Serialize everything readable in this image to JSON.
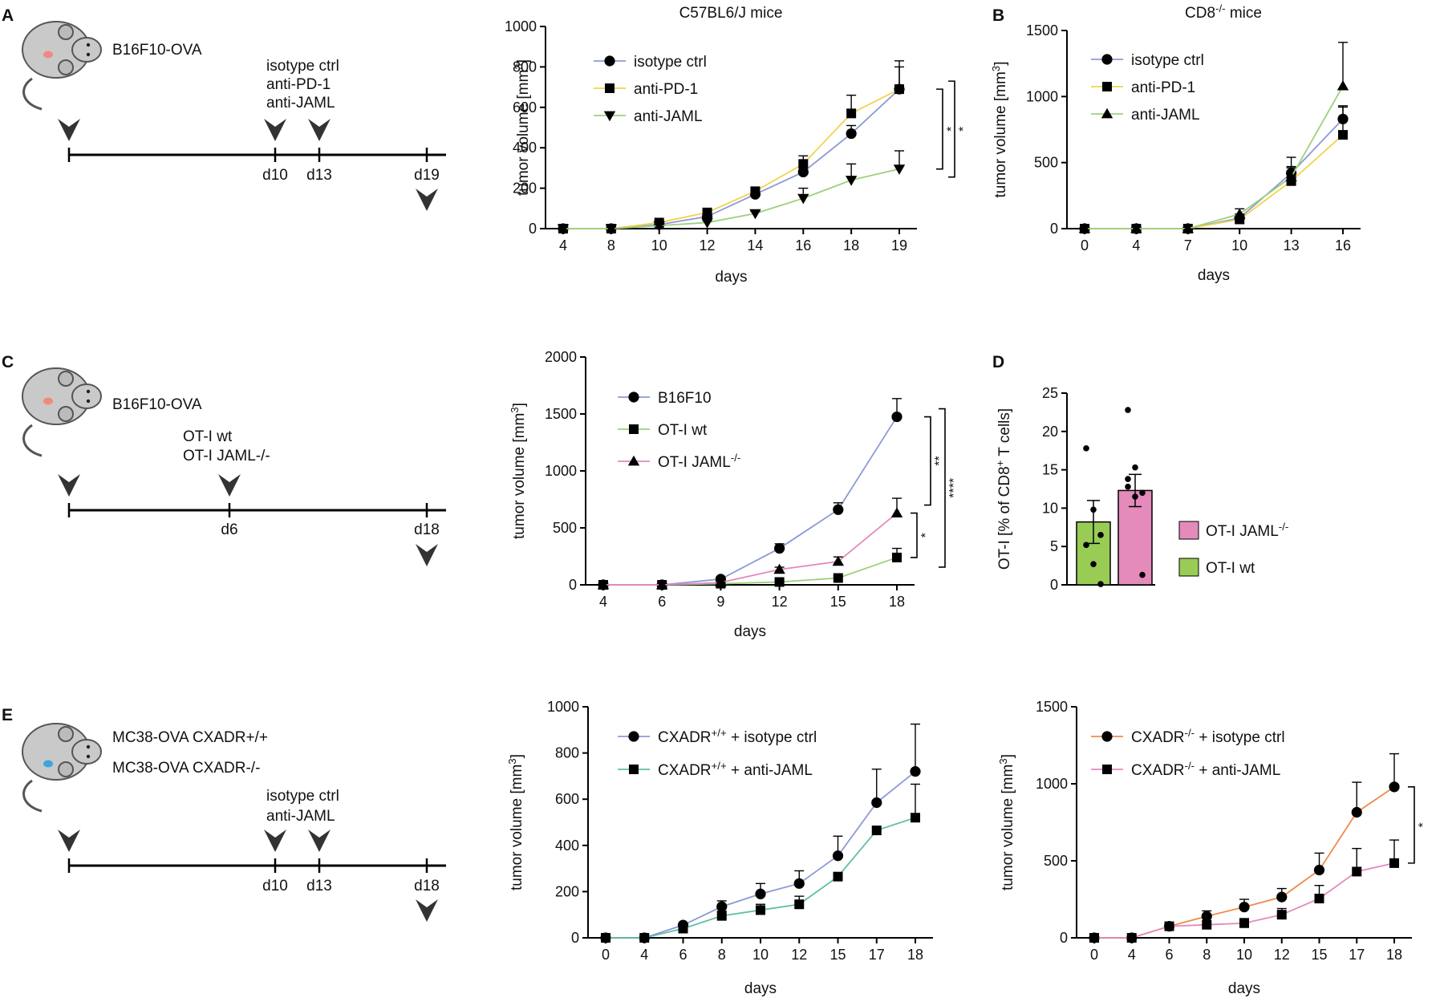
{
  "figure": {
    "panel_letters": [
      "A",
      "B",
      "C",
      "D",
      "E"
    ]
  },
  "schematics": [
    {
      "panel": "A",
      "mouse_labels": [
        "B16F10-OVA"
      ],
      "tumor_color": "#f08a7e",
      "treatment_labels": [
        "isotype ctrl",
        "anti-PD-1",
        "anti-JAML"
      ],
      "ticks": [
        "d10",
        "d13",
        "d19"
      ]
    },
    {
      "panel": "C",
      "mouse_labels": [
        "B16F10-OVA"
      ],
      "tumor_color": "#f08a7e",
      "treatment_labels": [
        "OT-I wt",
        "OT-I JAML-/-"
      ],
      "ticks": [
        "d6",
        "d18"
      ]
    },
    {
      "panel": "E",
      "mouse_labels": [
        "MC38-OVA CXADR+/+",
        "MC38-OVA CXADR-/-"
      ],
      "tumor_color": "#3aa6dd",
      "treatment_labels": [
        "isotype ctrl",
        "anti-JAML"
      ],
      "ticks": [
        "d10",
        "d13",
        "d18"
      ]
    }
  ],
  "chart_data": [
    {
      "id": "A",
      "type": "line",
      "title": "C57BL6/J mice",
      "xlabel": "days",
      "ylabel": "tumor volume [mm3]",
      "categories": [
        "4",
        "8",
        "10",
        "12",
        "14",
        "16",
        "18",
        "19"
      ],
      "ylim": [
        0,
        1000
      ],
      "yticks": [
        0,
        200,
        400,
        600,
        800,
        1000
      ],
      "series": [
        {
          "name": "isotype ctrl",
          "color": "#8c9ad4",
          "marker": "circle",
          "values": [
            0,
            0,
            20,
            60,
            170,
            280,
            470,
            690
          ],
          "errors": [
            0,
            0,
            5,
            10,
            25,
            30,
            40,
            140
          ]
        },
        {
          "name": "anti-PD-1",
          "color": "#f2d34b",
          "marker": "square",
          "values": [
            0,
            0,
            30,
            80,
            185,
            320,
            570,
            690
          ],
          "errors": [
            0,
            0,
            8,
            10,
            20,
            40,
            90,
            110
          ]
        },
        {
          "name": "anti-JAML",
          "color": "#9dd07d",
          "marker": "triangle-down",
          "values": [
            0,
            0,
            15,
            30,
            75,
            150,
            240,
            295
          ],
          "errors": [
            0,
            0,
            5,
            8,
            10,
            50,
            80,
            90
          ]
        }
      ],
      "significance": [
        "*",
        "*"
      ]
    },
    {
      "id": "B",
      "type": "line",
      "title": "CD8-/- mice",
      "xlabel": "days",
      "ylabel": "tumor volume [mm3]",
      "categories": [
        "0",
        "4",
        "7",
        "10",
        "13",
        "16"
      ],
      "ylim": [
        0,
        1500
      ],
      "yticks": [
        0,
        500,
        1000,
        1500
      ],
      "series": [
        {
          "name": "isotype ctrl",
          "color": "#8c9ad4",
          "marker": "circle",
          "values": [
            0,
            0,
            0,
            80,
            420,
            830
          ],
          "errors": [
            0,
            0,
            0,
            30,
            120,
            100
          ]
        },
        {
          "name": "anti-PD-1",
          "color": "#f2d34b",
          "marker": "square",
          "values": [
            0,
            0,
            0,
            70,
            360,
            710
          ],
          "errors": [
            0,
            0,
            0,
            25,
            100,
            210
          ]
        },
        {
          "name": "anti-JAML",
          "color": "#9dd07d",
          "marker": "triangle-up",
          "values": [
            0,
            0,
            0,
            110,
            390,
            1080
          ],
          "errors": [
            0,
            0,
            0,
            40,
            80,
            330
          ]
        }
      ]
    },
    {
      "id": "C",
      "type": "line",
      "title": "",
      "xlabel": "days",
      "ylabel": "tumor volume [mm3]",
      "categories": [
        "4",
        "6",
        "9",
        "12",
        "15",
        "18"
      ],
      "ylim": [
        0,
        2000
      ],
      "yticks": [
        0,
        500,
        1000,
        1500,
        2000
      ],
      "series": [
        {
          "name": "B16F10",
          "color": "#8c9ad4",
          "marker": "circle",
          "values": [
            0,
            0,
            50,
            320,
            660,
            1475
          ],
          "errors": [
            0,
            0,
            10,
            40,
            60,
            160
          ]
        },
        {
          "name": "OT-I wt",
          "color": "#9dd07d",
          "marker": "square",
          "values": [
            0,
            0,
            10,
            25,
            60,
            240
          ],
          "errors": [
            0,
            0,
            5,
            10,
            15,
            80
          ]
        },
        {
          "name": "OT-I JAML-/-",
          "color": "#e489be",
          "marker": "triangle-up",
          "values": [
            0,
            0,
            20,
            135,
            205,
            630
          ],
          "errors": [
            0,
            0,
            5,
            20,
            40,
            130
          ]
        }
      ],
      "significance": [
        "*",
        "**",
        "****"
      ]
    },
    {
      "id": "D",
      "type": "bar",
      "title": "",
      "xlabel": "",
      "ylabel": "OT-I [% of CD8+ T cells]",
      "categories": [
        "OT-I wt",
        "OT-I JAML-/-"
      ],
      "ylim": [
        0,
        25
      ],
      "yticks": [
        0,
        5,
        10,
        15,
        20,
        25
      ],
      "series": [
        {
          "name": "OT-I wt",
          "color": "#99cc55",
          "value": 8.2,
          "error": 2.8,
          "points": [
            17.8,
            9.8,
            6.5,
            5.2,
            2.7,
            0.1
          ]
        },
        {
          "name": "OT-I JAML-/-",
          "color": "#e48bbb",
          "value": 12.3,
          "error": 2.1,
          "points": [
            22.8,
            15.3,
            12.0,
            12.8,
            11.5,
            1.3,
            13.8
          ]
        }
      ],
      "legend": [
        "OT-I JAML-/-",
        "OT-I wt"
      ]
    },
    {
      "id": "E1",
      "type": "line",
      "title": "",
      "xlabel": "days",
      "ylabel": "tumor volume [mm3]",
      "categories": [
        "0",
        "4",
        "6",
        "8",
        "10",
        "12",
        "15",
        "17",
        "18"
      ],
      "ylim": [
        0,
        1000
      ],
      "yticks": [
        0,
        200,
        400,
        600,
        800,
        1000
      ],
      "series": [
        {
          "name": "CXADR+/+ + isotype ctrl",
          "color": "#8c9ad4",
          "marker": "circle",
          "values": [
            0,
            0,
            55,
            135,
            190,
            235,
            355,
            585,
            720
          ],
          "errors": [
            0,
            0,
            8,
            25,
            45,
            55,
            85,
            145,
            205
          ]
        },
        {
          "name": "CXADR+/+ + anti-JAML",
          "color": "#5fbfa8",
          "marker": "square",
          "values": [
            0,
            0,
            40,
            95,
            120,
            145,
            265,
            465,
            520
          ],
          "errors": [
            0,
            0,
            6,
            20,
            25,
            35,
            0,
            0,
            145
          ]
        }
      ]
    },
    {
      "id": "E2",
      "type": "line",
      "title": "",
      "xlabel": "days",
      "ylabel": "tumor volume [mm3]",
      "categories": [
        "0",
        "4",
        "6",
        "8",
        "10",
        "12",
        "15",
        "17",
        "18"
      ],
      "ylim": [
        0,
        1500
      ],
      "yticks": [
        0,
        500,
        1000,
        1500
      ],
      "series": [
        {
          "name": "CXADR-/- + isotype ctrl",
          "color": "#ee8a4b",
          "marker": "circle",
          "values": [
            0,
            0,
            75,
            140,
            200,
            265,
            440,
            815,
            980
          ],
          "errors": [
            0,
            0,
            10,
            35,
            50,
            55,
            110,
            195,
            215
          ]
        },
        {
          "name": "CXADR-/- + anti-JAML",
          "color": "#e489be",
          "marker": "square",
          "values": [
            0,
            0,
            75,
            85,
            95,
            150,
            255,
            430,
            485
          ],
          "errors": [
            0,
            0,
            10,
            60,
            30,
            40,
            85,
            150,
            150
          ]
        }
      ],
      "significance": [
        "*"
      ]
    }
  ]
}
